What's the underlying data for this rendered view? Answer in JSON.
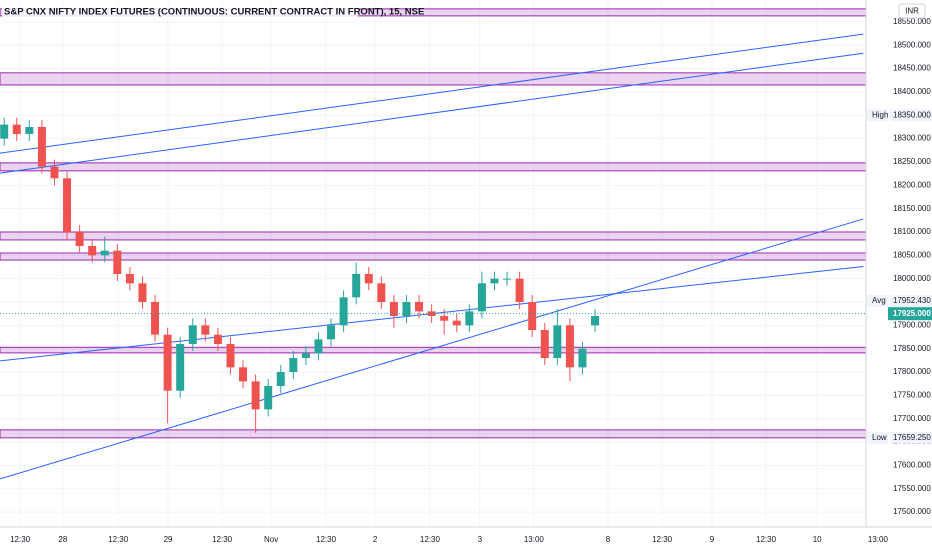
{
  "chart_data": {
    "type": "candlestick",
    "title": "S&P CNX NIFTY INDEX FUTURES (CONTINUOUS: CURRENT CONTRACT IN FRONT), 15, NSE",
    "currency": "INR",
    "up_color": "#26a69a",
    "down_color": "#ef5350",
    "x": [
      1,
      4,
      7,
      10,
      13,
      16,
      19,
      22,
      25,
      28,
      31,
      34,
      37,
      40,
      43,
      46,
      49,
      52,
      55,
      58,
      61,
      64,
      67,
      70,
      73,
      76,
      79,
      82,
      85,
      88,
      91,
      94,
      97,
      100,
      103,
      106,
      109,
      112,
      115,
      118,
      121,
      124,
      127,
      130,
      133,
      136,
      139,
      142
    ],
    "open": [
      18300,
      18330,
      18310,
      18325,
      18240,
      18215,
      18100,
      18070,
      18050,
      18060,
      18010,
      17990,
      17950,
      17880,
      17760,
      17860,
      17900,
      17880,
      17860,
      17810,
      17780,
      17720,
      17770,
      17800,
      17830,
      17840,
      17870,
      17900,
      17960,
      18010,
      17990,
      17950,
      17920,
      17950,
      17930,
      17920,
      17910,
      17900,
      17930,
      17990,
      18000,
      18000,
      17950,
      17890,
      17830,
      17900,
      17810,
      17900
    ],
    "high": [
      18345,
      18345,
      18340,
      18340,
      18255,
      18230,
      18115,
      18085,
      18090,
      18075,
      18025,
      18005,
      17965,
      17895,
      17875,
      17915,
      17915,
      17895,
      17875,
      17825,
      17795,
      17785,
      17815,
      17845,
      17855,
      17885,
      17915,
      17975,
      18035,
      18025,
      18005,
      17965,
      17965,
      17965,
      17945,
      17935,
      17925,
      17945,
      18015,
      18015,
      18015,
      18015,
      17965,
      17905,
      17935,
      17915,
      17865,
      17935
    ],
    "low": [
      18285,
      18295,
      18295,
      18225,
      18200,
      18085,
      18055,
      18035,
      18035,
      17995,
      17975,
      17935,
      17865,
      17690,
      17745,
      17845,
      17865,
      17845,
      17795,
      17765,
      17670,
      17705,
      17755,
      17785,
      17815,
      17825,
      17855,
      17885,
      17945,
      17975,
      17935,
      17895,
      17905,
      17915,
      17905,
      17880,
      17885,
      17885,
      17915,
      17975,
      17985,
      17935,
      17875,
      17815,
      17815,
      17780,
      17795,
      17885
    ],
    "close": [
      18330,
      18310,
      18325,
      18240,
      18215,
      18100,
      18070,
      18050,
      18060,
      18010,
      17990,
      17950,
      17880,
      17760,
      17860,
      17900,
      17880,
      17860,
      17810,
      17780,
      17720,
      17770,
      17800,
      17830,
      17840,
      17870,
      17900,
      17960,
      18010,
      17990,
      17950,
      17920,
      17950,
      17930,
      17920,
      17910,
      17900,
      17930,
      17990,
      18000,
      18000,
      17950,
      17890,
      17830,
      17900,
      17810,
      17850,
      17920
    ],
    "xlim": [
      0,
      210
    ],
    "xticks": [
      {
        "value": 4.8,
        "label": "12:30"
      },
      {
        "value": 15,
        "label": "28"
      },
      {
        "value": 28.2,
        "label": "12:30"
      },
      {
        "value": 40.1,
        "label": "29"
      },
      {
        "value": 53,
        "label": "12:30"
      },
      {
        "value": 64.7,
        "label": "Nov"
      },
      {
        "value": 77.8,
        "label": "12:30"
      },
      {
        "value": 89.5,
        "label": "2"
      },
      {
        "value": 102.6,
        "label": "12:30"
      },
      {
        "value": 114.5,
        "label": "3"
      },
      {
        "value": 127.4,
        "label": "13:00"
      },
      {
        "value": 145.1,
        "label": "8"
      },
      {
        "value": 158,
        "label": "12:30"
      },
      {
        "value": 169.9,
        "label": "9"
      },
      {
        "value": 182.8,
        "label": "12:30"
      },
      {
        "value": 195,
        "label": "10"
      },
      {
        "value": 209.5,
        "label": "13:00"
      }
    ],
    "ylim": [
      17468,
      18597
    ],
    "yticks": [
      {
        "value": 18550,
        "label": "18550.000"
      },
      {
        "value": 18500,
        "label": "18500.000"
      },
      {
        "value": 18450,
        "label": "18450.000"
      },
      {
        "value": 18400,
        "label": "18400.000"
      },
      {
        "value": 18350,
        "label": "18350.000"
      },
      {
        "value": 18300,
        "label": "18300.000"
      },
      {
        "value": 18250,
        "label": "18250.000"
      },
      {
        "value": 18200,
        "label": "18200.000"
      },
      {
        "value": 18150,
        "label": "18150.000"
      },
      {
        "value": 18100,
        "label": "18100.000"
      },
      {
        "value": 18050,
        "label": "18050.000"
      },
      {
        "value": 18000,
        "label": "18000.000"
      },
      {
        "value": 17950,
        "label": "17950.000"
      },
      {
        "value": 17900,
        "label": "17900.000"
      },
      {
        "value": 17850,
        "label": "17850.000"
      },
      {
        "value": 17800,
        "label": "17800.000"
      },
      {
        "value": 17750,
        "label": "17750.000"
      },
      {
        "value": 17700,
        "label": "17700.000"
      },
      {
        "value": 17650,
        "label": "17650.000"
      },
      {
        "value": 17600,
        "label": "17600.000"
      },
      {
        "value": 17550,
        "label": "17550.000"
      },
      {
        "value": 17500,
        "label": "17500.000"
      }
    ],
    "grid": true,
    "zones": [
      [
        18563,
        18578
      ],
      [
        18415,
        18441
      ],
      [
        18231,
        18248
      ],
      [
        18083,
        18100
      ],
      [
        18040,
        18055
      ],
      [
        17841,
        17853
      ],
      [
        17659,
        17676
      ]
    ],
    "zone_color": "#9c27b0",
    "trendlines": [
      {
        "x": [
          0,
          206
        ],
        "y": [
          18269,
          18524
        ]
      },
      {
        "x": [
          0,
          206
        ],
        "y": [
          18226,
          18483
        ]
      },
      {
        "x": [
          0,
          206
        ],
        "y": [
          17824,
          18026
        ]
      },
      {
        "x": [
          0,
          206
        ],
        "y": [
          17571,
          18128
        ]
      }
    ],
    "trendline_color": "#2962ff",
    "markers": [
      {
        "name": "High",
        "value": 18350,
        "label": "18350.000"
      },
      {
        "name": "Avg",
        "value": 17952.43,
        "label": "17952.430"
      },
      {
        "value": 17925,
        "label": "17925.000",
        "color": "#26a69a"
      },
      {
        "name": "Low",
        "value": 17659.25,
        "label": "17659.250"
      }
    ]
  }
}
